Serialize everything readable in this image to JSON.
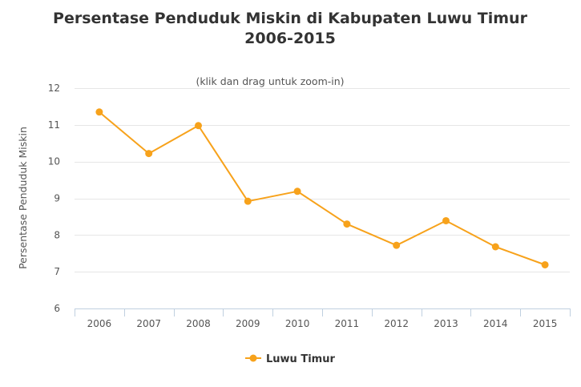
{
  "chart_data": {
    "type": "line",
    "title_line1": "Persentase Penduduk Miskin di Kabupaten Luwu Timur",
    "title_line2": "2006-2015",
    "subtitle": "(klik dan drag untuk zoom-in)",
    "xlabel": "",
    "ylabel": "Persentase Penduduk Miskin",
    "categories": [
      "2006",
      "2007",
      "2008",
      "2009",
      "2010",
      "2011",
      "2012",
      "2013",
      "2014",
      "2015"
    ],
    "yticks": [
      "6",
      "7",
      "8",
      "9",
      "10",
      "11",
      "12"
    ],
    "ylim": [
      6,
      12
    ],
    "series": [
      {
        "name": "Luwu Timur",
        "color": "#f7a21b",
        "values": [
          11.35,
          10.22,
          10.98,
          8.92,
          9.19,
          8.3,
          7.72,
          8.39,
          7.68,
          7.19
        ]
      }
    ],
    "grid": true,
    "legend_position": "bottom-center"
  }
}
